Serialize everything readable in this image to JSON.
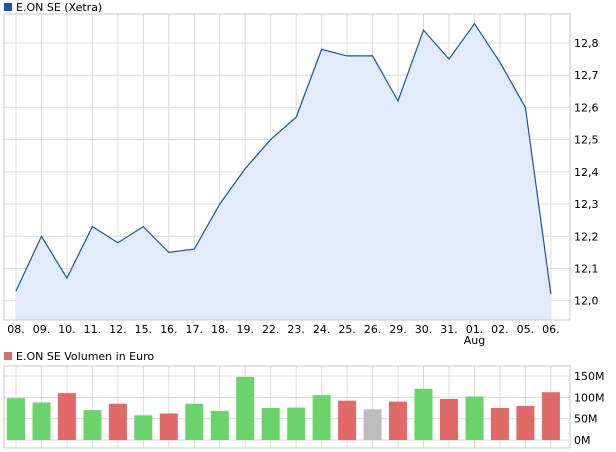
{
  "chart_data": [
    {
      "type": "area",
      "title": "E.ON SE (Xetra)",
      "series_color": "#1a54a8",
      "fill_color": "#e2ebfb",
      "categories": [
        "08.",
        "09.",
        "10.",
        "11.",
        "12.",
        "15.",
        "16.",
        "17.",
        "18.",
        "19.",
        "22.",
        "23.",
        "24.",
        "25.",
        "26.",
        "29.",
        "30.",
        "31.",
        "01.",
        "02.",
        "05.",
        "06."
      ],
      "category_extra": {
        "index": 18,
        "text": "Aug"
      },
      "values": [
        12.03,
        12.2,
        12.07,
        12.23,
        12.18,
        12.23,
        12.15,
        12.16,
        12.3,
        12.41,
        12.5,
        12.57,
        12.78,
        12.76,
        12.76,
        12.62,
        12.84,
        12.75,
        12.86,
        12.74,
        12.6,
        12.02
      ],
      "ylim": [
        11.94,
        12.89
      ],
      "yticks": [
        12.0,
        12.1,
        12.2,
        12.3,
        12.4,
        12.5,
        12.6,
        12.7,
        12.8
      ],
      "ytick_labels": [
        "12,0",
        "12,1",
        "12,2",
        "12,3",
        "12,4",
        "12,5",
        "12,6",
        "12,7",
        "12,8"
      ],
      "grid": true,
      "legend": "top-left"
    },
    {
      "type": "bar",
      "title": "E.ON SE Volumen in Euro",
      "legend_color": "#e06a6a",
      "color_up": "#6ad46a",
      "color_down": "#e06a6a",
      "color_neutral": "#bcbcbc",
      "values": [
        98,
        88,
        110,
        70,
        85,
        58,
        62,
        85,
        68,
        148,
        75,
        76,
        105,
        92,
        72,
        90,
        120,
        96,
        102,
        75,
        80,
        112
      ],
      "directions": [
        "up",
        "up",
        "down",
        "up",
        "down",
        "up",
        "down",
        "up",
        "up",
        "up",
        "up",
        "up",
        "up",
        "down",
        "neutral",
        "down",
        "up",
        "down",
        "up",
        "down",
        "down",
        "down"
      ],
      "ylim": [
        0,
        150
      ],
      "yticks": [
        0,
        50,
        100,
        150
      ],
      "ytick_labels": [
        "0M",
        "50M",
        "100M",
        "150M"
      ],
      "grid": true,
      "legend": "top-left"
    }
  ]
}
